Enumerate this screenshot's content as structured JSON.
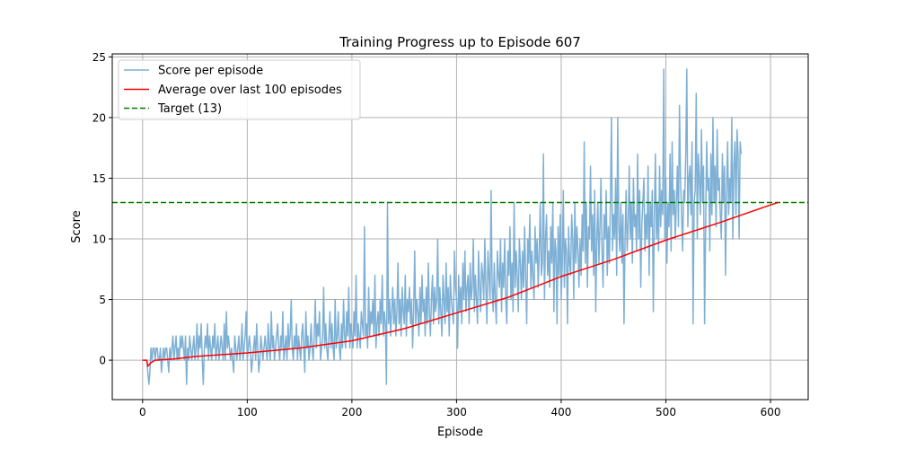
{
  "chart_data": {
    "type": "line",
    "title": "Training Progress up to Episode 607",
    "xlabel": "Episode",
    "ylabel": "Score",
    "xlim": [
      -29,
      636
    ],
    "ylim": [
      -3.25,
      25.25
    ],
    "xticks": [
      0,
      100,
      200,
      300,
      400,
      500,
      600
    ],
    "yticks": [
      0,
      5,
      10,
      15,
      20,
      25
    ],
    "grid": true,
    "legend_position": "top-left",
    "colors": {
      "score": "#7eb0d5",
      "average": "#ff0000",
      "target": "#008000",
      "grid": "#b0b0b0",
      "axes": "#000000"
    },
    "series": [
      {
        "name": "Score per episode",
        "style": "line",
        "x_start": 1,
        "values": [
          0,
          0,
          0,
          0,
          -1,
          -2,
          -1,
          1,
          0,
          1,
          1,
          0,
          1,
          1,
          0,
          0,
          1,
          -1,
          0,
          1,
          0,
          1,
          1,
          0,
          -1,
          1,
          0,
          1,
          2,
          0,
          1,
          2,
          0,
          1,
          0,
          2,
          1,
          2,
          1,
          0,
          2,
          -2,
          1,
          0,
          2,
          1,
          0,
          1,
          2,
          0,
          1,
          3,
          0,
          2,
          1,
          3,
          0,
          -2,
          1,
          2,
          1,
          3,
          0,
          2,
          1,
          0,
          2,
          1,
          3,
          0,
          1,
          2,
          0,
          1,
          2,
          1,
          0,
          3,
          0,
          4,
          1,
          2,
          1,
          0,
          1,
          0,
          -1,
          2,
          1,
          0,
          1,
          2,
          0,
          1,
          3,
          0,
          1,
          2,
          4,
          0,
          1,
          2,
          1,
          -1,
          0,
          1,
          2,
          0,
          3,
          1,
          -1,
          0,
          2,
          1,
          0,
          1,
          2,
          1,
          0,
          3,
          1,
          0,
          4,
          1,
          2,
          0,
          1,
          2,
          3,
          1,
          0,
          2,
          1,
          4,
          0,
          1,
          2,
          0,
          3,
          1,
          2,
          5,
          1,
          0,
          2,
          1,
          3,
          0,
          2,
          1,
          0,
          2,
          3,
          1,
          -1,
          4,
          1,
          2,
          0,
          1,
          3,
          1,
          0,
          2,
          5,
          1,
          3,
          2,
          4,
          0,
          1,
          2,
          6,
          1,
          3,
          1,
          0,
          2,
          4,
          1,
          3,
          1,
          0,
          5,
          1,
          2,
          4,
          1,
          0,
          3,
          1,
          5,
          2,
          1,
          4,
          2,
          6,
          1,
          3,
          2,
          1,
          4,
          2,
          7,
          1,
          3,
          2,
          1,
          4,
          3,
          2,
          11,
          2,
          3,
          1,
          6,
          2,
          4,
          3,
          5,
          2,
          7,
          1,
          3,
          4,
          2,
          5,
          3,
          7,
          2,
          4,
          3,
          -2,
          13,
          3,
          5,
          2,
          4,
          6,
          3,
          5,
          2,
          4,
          8,
          3,
          5,
          2,
          6,
          4,
          3,
          7,
          2,
          5,
          4,
          6,
          3,
          5,
          1,
          4,
          9,
          3,
          5,
          4,
          2,
          6,
          3,
          7,
          4,
          5,
          2,
          6,
          3,
          8,
          4,
          2,
          5,
          7,
          3,
          6,
          4,
          5,
          10,
          3,
          6,
          4,
          2,
          7,
          5,
          3,
          8,
          4,
          6,
          2,
          7,
          5,
          4,
          3,
          9,
          6,
          5,
          1,
          7,
          4,
          6,
          3,
          8,
          5,
          9,
          4,
          6,
          7,
          3,
          8,
          5,
          6,
          10,
          4,
          7,
          5,
          3,
          9,
          6,
          4,
          8,
          7,
          5,
          10,
          6,
          3,
          9,
          7,
          5,
          14,
          6,
          4,
          8,
          5,
          3,
          9,
          7,
          6,
          10,
          4,
          8,
          6,
          10,
          5,
          3,
          9,
          7,
          11,
          5,
          8,
          4,
          13,
          6,
          9,
          7,
          4,
          10,
          8,
          5,
          9,
          6,
          11,
          7,
          3,
          10,
          8,
          12,
          6,
          9,
          7,
          5,
          11,
          8,
          10,
          6,
          9,
          13,
          7,
          8,
          17,
          5,
          10,
          12,
          7,
          9,
          6,
          11,
          8,
          13,
          4,
          10,
          9,
          3,
          11,
          7,
          12,
          5,
          8,
          14,
          6,
          10,
          9,
          3,
          11,
          8,
          7,
          12,
          10,
          5,
          13,
          8,
          11,
          9,
          6,
          10,
          7,
          12,
          9,
          18,
          8,
          13,
          6,
          11,
          10,
          16,
          9,
          12,
          7,
          14,
          4,
          10,
          13,
          8,
          11,
          15,
          9,
          6,
          12,
          10,
          14,
          7,
          11,
          8,
          13,
          20,
          9,
          12,
          10,
          15,
          7,
          20,
          11,
          9,
          13,
          8,
          12,
          3,
          10,
          14,
          9,
          11,
          16,
          10,
          13,
          8,
          15,
          11,
          12,
          9,
          17,
          10,
          14,
          6,
          11,
          13,
          15,
          9,
          12,
          10,
          16,
          7,
          13,
          11,
          14,
          4,
          12,
          17,
          10,
          13,
          9,
          16,
          11,
          14,
          12,
          24,
          10,
          15,
          8,
          13,
          11,
          17,
          9,
          18,
          12,
          14,
          10,
          13,
          16,
          11,
          21,
          15,
          12,
          9,
          14,
          13,
          17,
          24,
          11,
          15,
          16,
          12,
          18,
          3,
          13,
          14,
          22,
          10,
          17,
          15,
          12,
          19,
          13,
          16,
          3,
          11,
          18,
          14,
          15,
          9,
          17,
          12,
          20,
          13,
          16,
          11,
          19,
          14,
          15,
          12,
          10,
          17,
          13,
          16,
          7,
          14,
          18,
          12,
          15,
          13,
          20,
          10,
          16,
          18,
          12,
          19,
          17,
          10,
          18,
          17
        ]
      },
      {
        "name": "Average over last 100 episodes",
        "style": "line",
        "points": [
          [
            0,
            0
          ],
          [
            4,
            0
          ],
          [
            5,
            -0.5
          ],
          [
            8,
            -0.2
          ],
          [
            12,
            0
          ],
          [
            30,
            0.1
          ],
          [
            50,
            0.3
          ],
          [
            100,
            0.6
          ],
          [
            150,
            1.0
          ],
          [
            200,
            1.6
          ],
          [
            250,
            2.6
          ],
          [
            300,
            3.9
          ],
          [
            350,
            5.2
          ],
          [
            400,
            6.9
          ],
          [
            450,
            8.3
          ],
          [
            500,
            9.9
          ],
          [
            550,
            11.3
          ],
          [
            600,
            12.8
          ],
          [
            607,
            13.0
          ]
        ]
      },
      {
        "name": "Target (13)",
        "style": "dashed",
        "y": 13
      }
    ]
  }
}
